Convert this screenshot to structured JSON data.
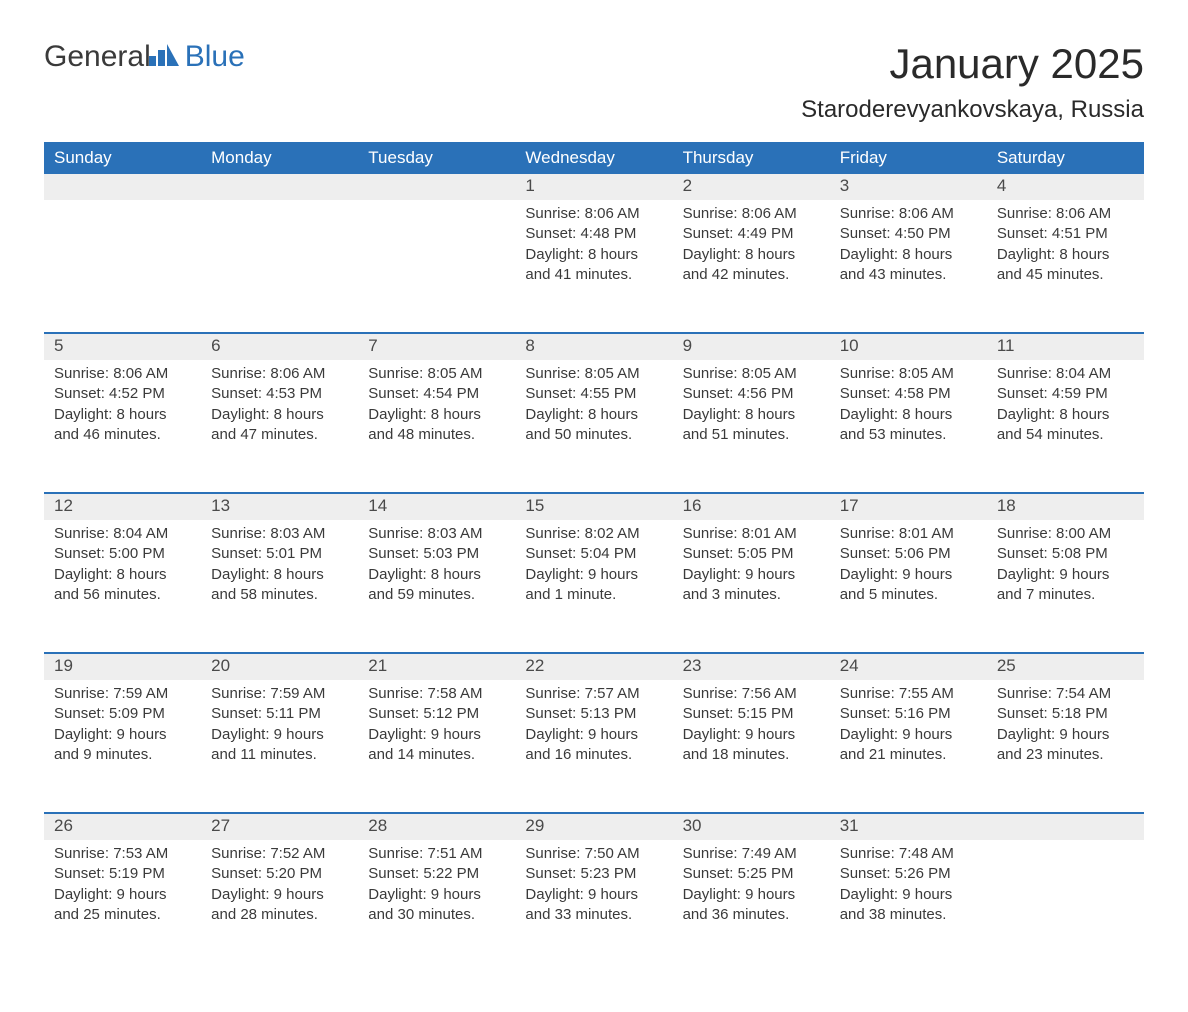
{
  "logo": {
    "general": "General",
    "blue": "Blue"
  },
  "title": {
    "month": "January 2025",
    "location": "Staroderevyankovskaya, Russia"
  },
  "colors": {
    "header_bg": "#2a71b8",
    "header_text": "#ffffff",
    "daynum_bg": "#eeeeee",
    "week_divider": "#2a71b8",
    "body_text": "#3a3a3a",
    "page_bg": "#ffffff"
  },
  "fonts": {
    "family": "Arial, Helvetica, sans-serif",
    "title_size_pt": 32,
    "location_size_pt": 18,
    "header_size_pt": 13,
    "daynum_size_pt": 13,
    "body_size_pt": 11
  },
  "day_headers": [
    "Sunday",
    "Monday",
    "Tuesday",
    "Wednesday",
    "Thursday",
    "Friday",
    "Saturday"
  ],
  "weeks": [
    [
      null,
      null,
      null,
      {
        "n": "1",
        "sunrise": "8:06 AM",
        "sunset": "4:48 PM",
        "daylight": "8 hours and 41 minutes."
      },
      {
        "n": "2",
        "sunrise": "8:06 AM",
        "sunset": "4:49 PM",
        "daylight": "8 hours and 42 minutes."
      },
      {
        "n": "3",
        "sunrise": "8:06 AM",
        "sunset": "4:50 PM",
        "daylight": "8 hours and 43 minutes."
      },
      {
        "n": "4",
        "sunrise": "8:06 AM",
        "sunset": "4:51 PM",
        "daylight": "8 hours and 45 minutes."
      }
    ],
    [
      {
        "n": "5",
        "sunrise": "8:06 AM",
        "sunset": "4:52 PM",
        "daylight": "8 hours and 46 minutes."
      },
      {
        "n": "6",
        "sunrise": "8:06 AM",
        "sunset": "4:53 PM",
        "daylight": "8 hours and 47 minutes."
      },
      {
        "n": "7",
        "sunrise": "8:05 AM",
        "sunset": "4:54 PM",
        "daylight": "8 hours and 48 minutes."
      },
      {
        "n": "8",
        "sunrise": "8:05 AM",
        "sunset": "4:55 PM",
        "daylight": "8 hours and 50 minutes."
      },
      {
        "n": "9",
        "sunrise": "8:05 AM",
        "sunset": "4:56 PM",
        "daylight": "8 hours and 51 minutes."
      },
      {
        "n": "10",
        "sunrise": "8:05 AM",
        "sunset": "4:58 PM",
        "daylight": "8 hours and 53 minutes."
      },
      {
        "n": "11",
        "sunrise": "8:04 AM",
        "sunset": "4:59 PM",
        "daylight": "8 hours and 54 minutes."
      }
    ],
    [
      {
        "n": "12",
        "sunrise": "8:04 AM",
        "sunset": "5:00 PM",
        "daylight": "8 hours and 56 minutes."
      },
      {
        "n": "13",
        "sunrise": "8:03 AM",
        "sunset": "5:01 PM",
        "daylight": "8 hours and 58 minutes."
      },
      {
        "n": "14",
        "sunrise": "8:03 AM",
        "sunset": "5:03 PM",
        "daylight": "8 hours and 59 minutes."
      },
      {
        "n": "15",
        "sunrise": "8:02 AM",
        "sunset": "5:04 PM",
        "daylight": "9 hours and 1 minute."
      },
      {
        "n": "16",
        "sunrise": "8:01 AM",
        "sunset": "5:05 PM",
        "daylight": "9 hours and 3 minutes."
      },
      {
        "n": "17",
        "sunrise": "8:01 AM",
        "sunset": "5:06 PM",
        "daylight": "9 hours and 5 minutes."
      },
      {
        "n": "18",
        "sunrise": "8:00 AM",
        "sunset": "5:08 PM",
        "daylight": "9 hours and 7 minutes."
      }
    ],
    [
      {
        "n": "19",
        "sunrise": "7:59 AM",
        "sunset": "5:09 PM",
        "daylight": "9 hours and 9 minutes."
      },
      {
        "n": "20",
        "sunrise": "7:59 AM",
        "sunset": "5:11 PM",
        "daylight": "9 hours and 11 minutes."
      },
      {
        "n": "21",
        "sunrise": "7:58 AM",
        "sunset": "5:12 PM",
        "daylight": "9 hours and 14 minutes."
      },
      {
        "n": "22",
        "sunrise": "7:57 AM",
        "sunset": "5:13 PM",
        "daylight": "9 hours and 16 minutes."
      },
      {
        "n": "23",
        "sunrise": "7:56 AM",
        "sunset": "5:15 PM",
        "daylight": "9 hours and 18 minutes."
      },
      {
        "n": "24",
        "sunrise": "7:55 AM",
        "sunset": "5:16 PM",
        "daylight": "9 hours and 21 minutes."
      },
      {
        "n": "25",
        "sunrise": "7:54 AM",
        "sunset": "5:18 PM",
        "daylight": "9 hours and 23 minutes."
      }
    ],
    [
      {
        "n": "26",
        "sunrise": "7:53 AM",
        "sunset": "5:19 PM",
        "daylight": "9 hours and 25 minutes."
      },
      {
        "n": "27",
        "sunrise": "7:52 AM",
        "sunset": "5:20 PM",
        "daylight": "9 hours and 28 minutes."
      },
      {
        "n": "28",
        "sunrise": "7:51 AM",
        "sunset": "5:22 PM",
        "daylight": "9 hours and 30 minutes."
      },
      {
        "n": "29",
        "sunrise": "7:50 AM",
        "sunset": "5:23 PM",
        "daylight": "9 hours and 33 minutes."
      },
      {
        "n": "30",
        "sunrise": "7:49 AM",
        "sunset": "5:25 PM",
        "daylight": "9 hours and 36 minutes."
      },
      {
        "n": "31",
        "sunrise": "7:48 AM",
        "sunset": "5:26 PM",
        "daylight": "9 hours and 38 minutes."
      },
      null
    ]
  ],
  "labels": {
    "sunrise": "Sunrise:",
    "sunset": "Sunset:",
    "daylight": "Daylight:"
  }
}
